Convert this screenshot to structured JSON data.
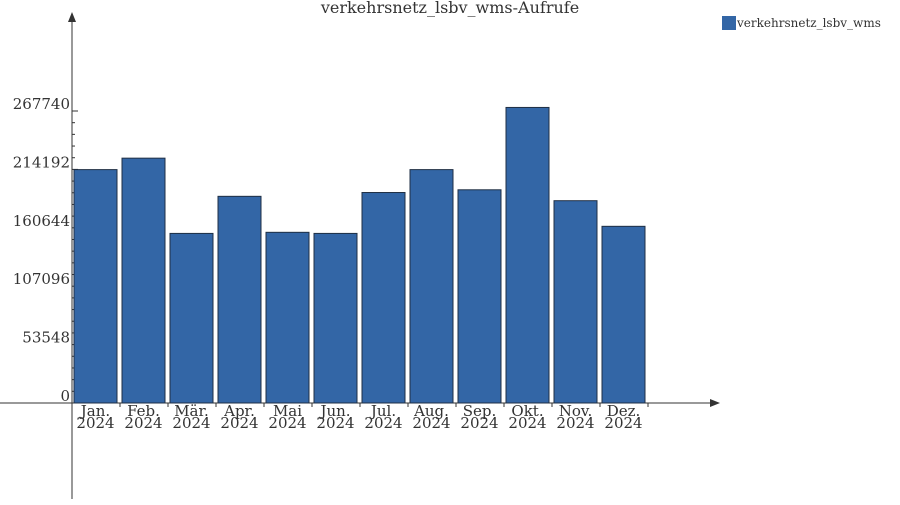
{
  "chart_data": {
    "type": "bar",
    "title": "verkehrsnetz_lsbv_wms-Aufrufe",
    "xlabel": "",
    "ylabel": "",
    "categories": [
      [
        "Jan.",
        "2024"
      ],
      [
        "Feb.",
        "2024"
      ],
      [
        "Mär.",
        "2024"
      ],
      [
        "Apr.",
        "2024"
      ],
      [
        "Mai",
        "2024"
      ],
      [
        "Jun.",
        "2024"
      ],
      [
        "Jul.",
        "2024"
      ],
      [
        "Aug.",
        "2024"
      ],
      [
        "Sep.",
        "2024"
      ],
      [
        "Okt.",
        "2024"
      ],
      [
        "Nov.",
        "2024"
      ],
      [
        "Dez.",
        "2024"
      ]
    ],
    "series": [
      {
        "name": "verkehrsnetz_lsbv_wms",
        "color": "#3366a6",
        "values": [
          214000,
          224500,
          155500,
          189500,
          156500,
          155500,
          193000,
          214000,
          195500,
          271000,
          185500,
          162000
        ]
      }
    ],
    "yticks": [
      0,
      53548,
      107096,
      160644,
      214192,
      267740
    ],
    "ylim": [
      0,
      267740
    ],
    "grid": false,
    "legend": "top-right"
  }
}
